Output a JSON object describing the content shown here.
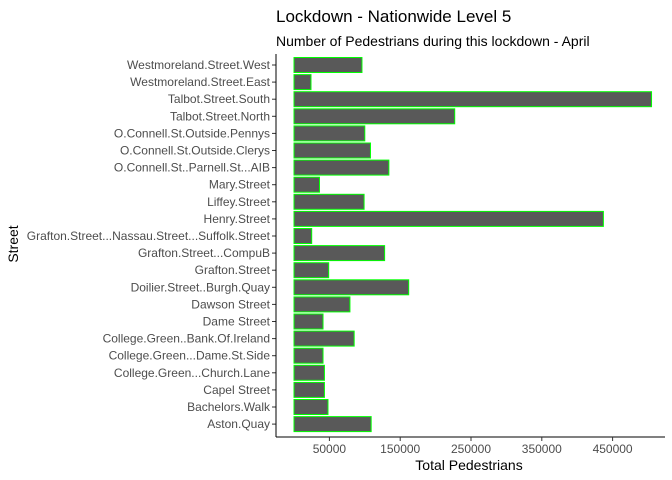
{
  "chart_data": {
    "type": "bar",
    "orientation": "horizontal",
    "title": "Lockdown - Nationwide Level 5",
    "subtitle": "Number of Pedestrians during this lockdown - April",
    "xlabel": "Total Pedestrians",
    "ylabel": "Street",
    "xlim": [
      0,
      505000
    ],
    "x_ticks": [
      50000,
      150000,
      250000,
      350000,
      450000
    ],
    "x_tick_labels": [
      "50000",
      "150000",
      "250000",
      "350000",
      "450000"
    ],
    "grid": false,
    "legend": "none",
    "colors": {
      "bar_fill": "#595959",
      "bar_stroke": "#00ff00",
      "axis": "#000000"
    },
    "categories": [
      "Westmoreland.Street.West",
      "Westmoreland.Street.East",
      "Talbot.Street.South",
      "Talbot.Street.North",
      "O.Connell.St.Outside.Pennys",
      "O.Connell.St.Outside.Clerys",
      "O.Connell.St..Parnell.St...AIB",
      "Mary.Street",
      "Liffey.Street",
      "Henry.Street",
      "Grafton.Street...Nassau.Street...Suffolk.Street",
      "Grafton.Street...CompuB",
      "Grafton.Street",
      "Doilier.Street..Burgh.Quay",
      "Dawson Street",
      "Dame Street",
      "College.Green..Bank.Of.Ireland",
      "College.Green...Dame.St.Side",
      "College.Green...Church.Lane",
      "Capel Street",
      "Bachelors.Walk",
      "Aston.Quay"
    ],
    "values": [
      96000,
      24000,
      505000,
      227000,
      100000,
      108000,
      134000,
      36000,
      99000,
      437000,
      25000,
      128000,
      49000,
      162000,
      79000,
      41000,
      85000,
      41000,
      43000,
      43000,
      48000,
      109000
    ]
  }
}
